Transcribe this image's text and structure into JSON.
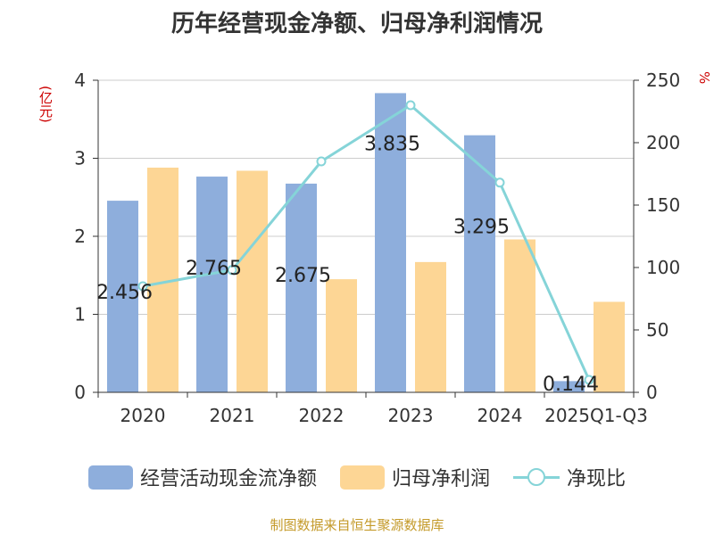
{
  "title": "历年经营现金净额、归母净利润情况",
  "source": "制图数据来自恒生聚源数据库",
  "colors": {
    "bar1": "#8eaedc",
    "bar2": "#fdd695",
    "line": "#85d4d8",
    "unit": "#cc0000",
    "source": "#c49a2a"
  },
  "chart_data": {
    "type": "bar",
    "title": "历年经营现金净额、归母净利润情况",
    "categories": [
      "2020",
      "2021",
      "2022",
      "2023",
      "2024",
      "2025Q1-Q3"
    ],
    "y_left": {
      "unit": "(亿元)",
      "ylim": [
        0,
        4
      ],
      "ticks": [
        "0",
        "1",
        "2",
        "3",
        "4"
      ]
    },
    "y_right": {
      "unit": "%",
      "ylim": [
        0,
        250
      ],
      "ticks": [
        "0",
        "50",
        "100",
        "150",
        "200",
        "250"
      ]
    },
    "series": [
      {
        "name": "经营活动现金流净额",
        "type": "bar",
        "axis": "left",
        "values": [
          2.456,
          2.765,
          2.675,
          3.835,
          3.295,
          0.144
        ],
        "labels": [
          "2.456",
          "2.765",
          "2.675",
          "3.835",
          "3.295",
          "0.144"
        ]
      },
      {
        "name": "归母净利润",
        "type": "bar",
        "axis": "left",
        "values": [
          2.88,
          2.84,
          1.45,
          1.67,
          1.96,
          1.16
        ]
      },
      {
        "name": "净现比",
        "type": "line",
        "axis": "right",
        "values": [
          85,
          98,
          185,
          230,
          168,
          10
        ]
      }
    ],
    "grid": true,
    "legend_position": "bottom"
  }
}
